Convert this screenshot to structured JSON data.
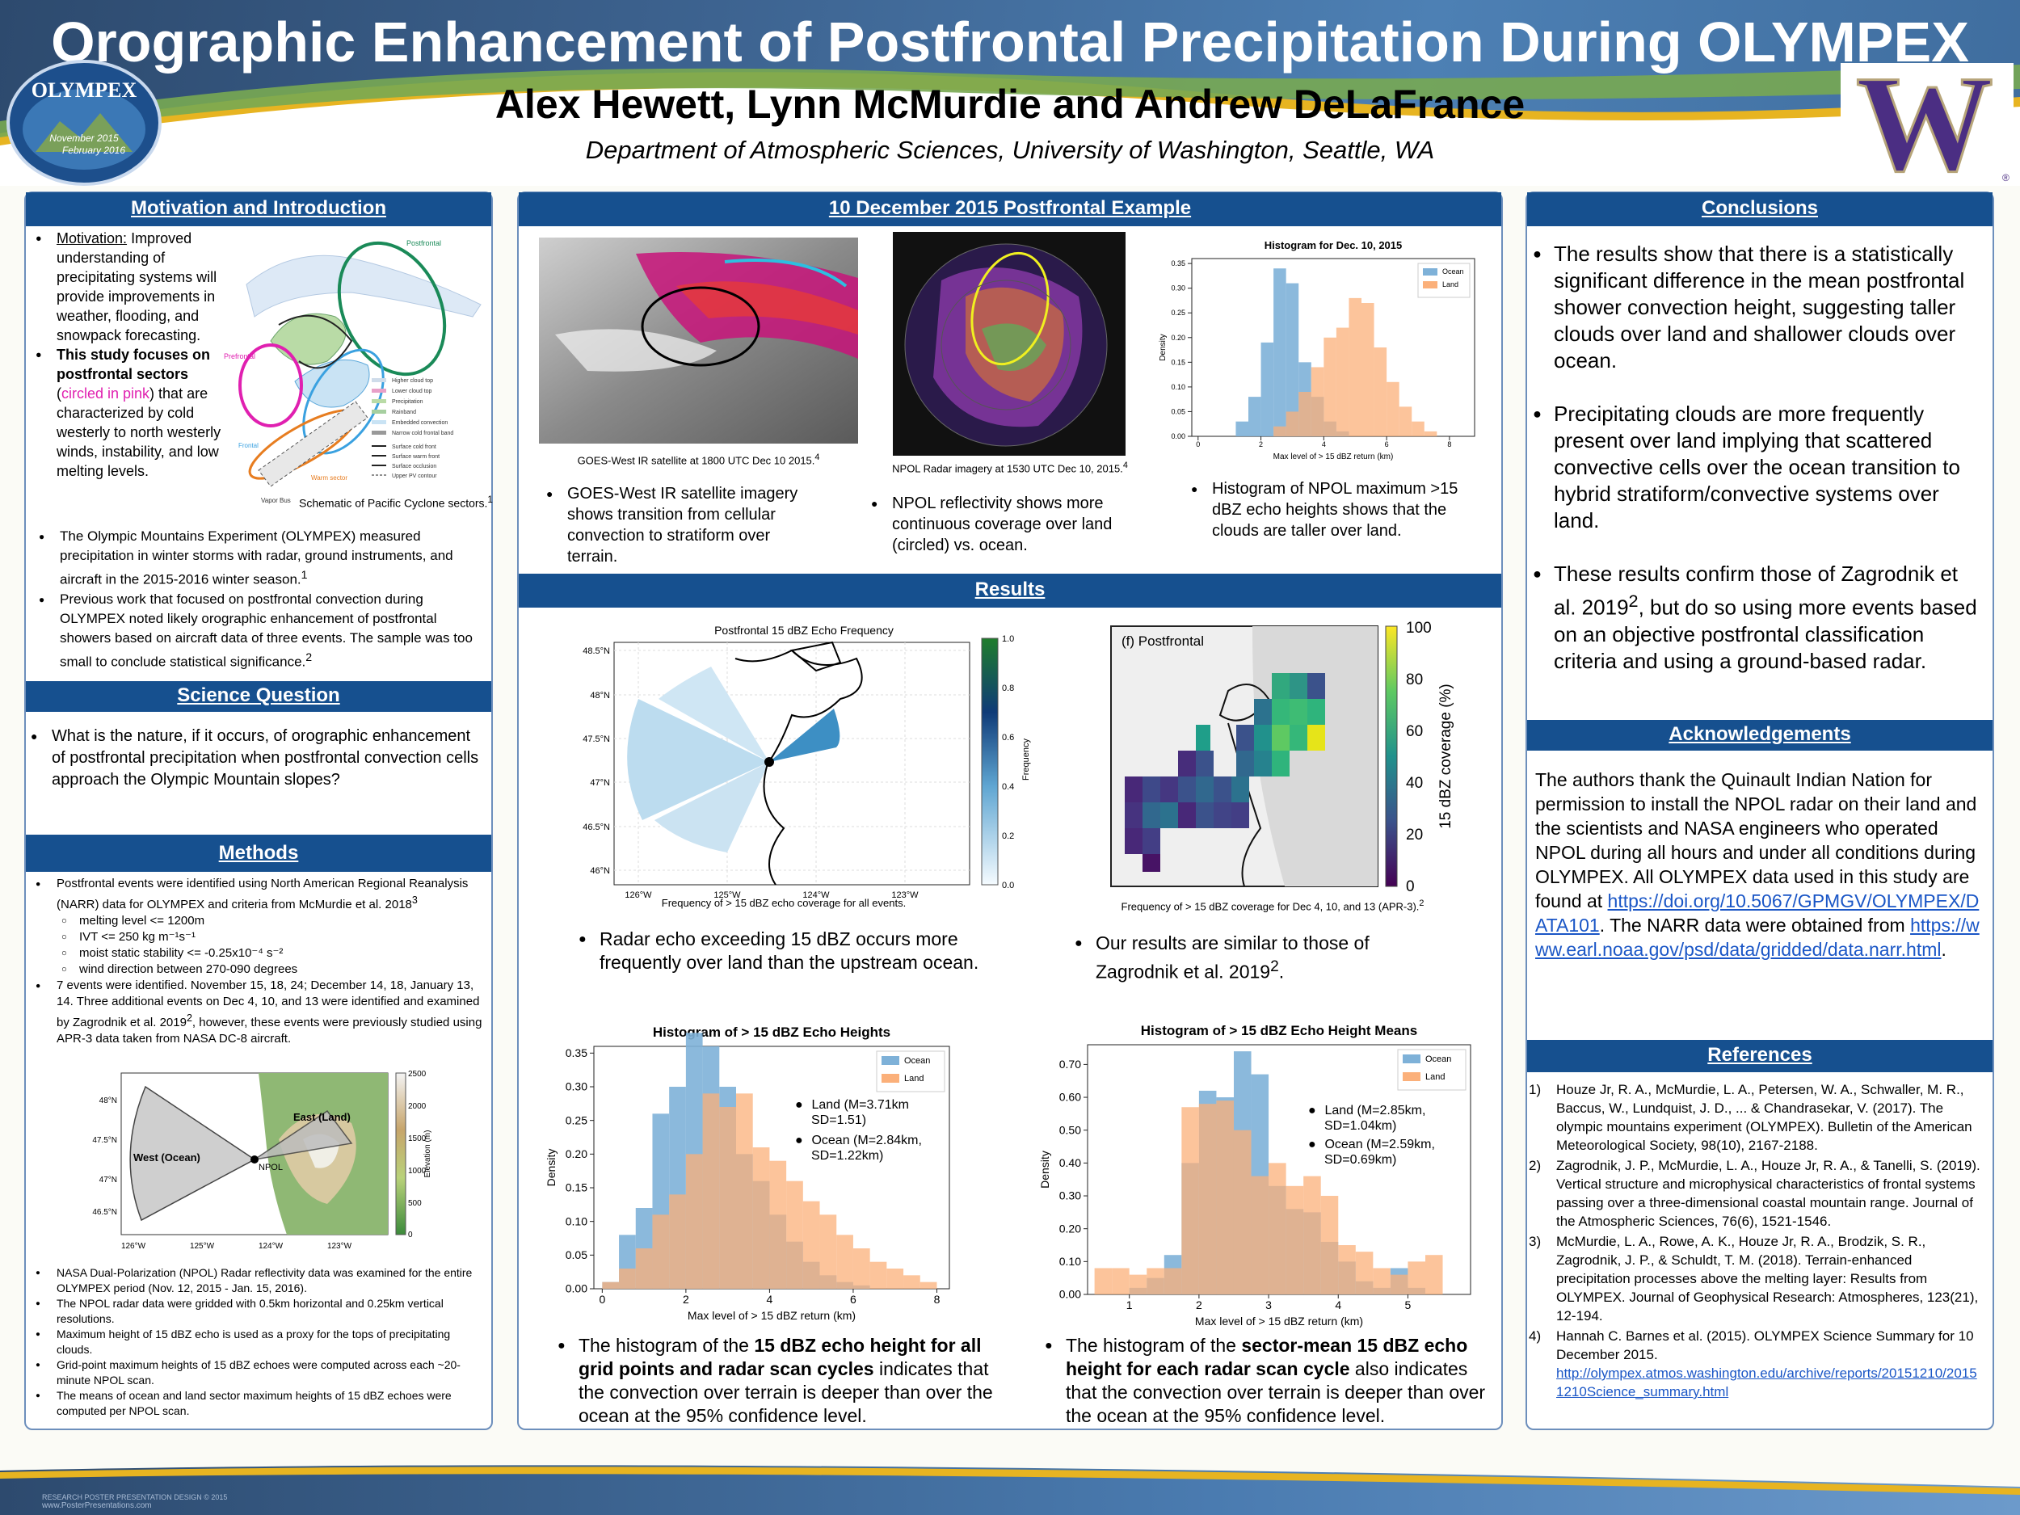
{
  "header": {
    "title": "Orographic Enhancement of Postfrontal Precipitation During OLYMPEX",
    "authors": "Alex Hewett, Lynn McMurdie and Andrew DeLaFrance",
    "affiliation": "Department of Atmospheric Sciences, University of Washington, Seattle, WA",
    "logo_top": "OLYMPEX",
    "logo_d1": "November 2015",
    "logo_d2": "February 2016",
    "uw_letter": "W",
    "uw_reg": "®"
  },
  "motivation": {
    "heading": "Motivation and Introduction",
    "b1_label": "Motivation:",
    "b1_text": "Improved understanding of precipitating systems will provide improvements in weather, flooding, and snowpack forecasting.",
    "b2_bold": "This study focuses on postfrontal sectors",
    "b2_pink": "circled in pink",
    "b2_rest": "that are characterized by cold westerly to north westerly winds, instability, and low melting levels.",
    "fig_caption": "Schematic of Pacific Cyclone sectors.",
    "fig_caption_sup": "1",
    "fig_labels": {
      "postfrontal": "Postfrontal",
      "prefrontal": "Prefrontal",
      "warm_sector": "Warm sector",
      "frontal": "Frontal",
      "vapor_bus": "Vapor Bus"
    },
    "legend": [
      "Higher cloud top",
      "Lower cloud top",
      "Precipitation",
      "Rainband",
      "Embedded convection",
      "Narrow cold frontal band",
      "Surface cold front",
      "Surface warm front",
      "Surface occlusion",
      "Upper PV contour"
    ],
    "b3": "The Olympic Mountains Experiment (OLYMPEX) measured precipitation in winter storms with radar, ground instruments, and aircraft in the 2015-2016 winter season.",
    "b3_sup": "1",
    "b4": "Previous work that focused on postfrontal convection during OLYMPEX noted likely orographic enhancement of postfrontal showers based on aircraft data of three events. The sample was too small to conclude statistical significance.",
    "b4_sup": "2"
  },
  "science": {
    "heading": "Science Question",
    "text": "What is the nature, if it occurs, of orographic enhancement of postfrontal precipitation when postfrontal convection cells approach the Olympic Mountain slopes?"
  },
  "methods": {
    "heading": "Methods",
    "b1": "Postfrontal events were identified using North American Regional Reanalysis (NARR) data for OLYMPEX and criteria from McMurdie et al. 2018",
    "b1_sup": "3",
    "criteria": [
      "melting level <= 1200m",
      "IVT <= 250 kg m⁻¹s⁻¹",
      "moist static stability <= -0.25x10⁻⁴ s⁻²",
      "wind direction between 270-090 degrees"
    ],
    "b2": "7 events were identified. November 15, 18, 24; December 14, 18, January 13, 14. Three additional events on Dec 4, 10, and 13 were identified and examined by Zagrodnik et al. 2019",
    "b2_sup": "2",
    "b2_rest": ", however, these events were previously studied using APR-3 data taken from NASA DC-8 aircraft.",
    "map": {
      "west": "West (Ocean)",
      "east": "East (Land)",
      "npol": "NPOL",
      "cbar_label": "Elevation (m)",
      "cbar_ticks": [
        "2500",
        "2000",
        "1500",
        "1000",
        "500",
        "0"
      ],
      "lat_ticks": [
        "48°N",
        "47.5°N",
        "47°N",
        "46.5°N"
      ],
      "lon_ticks": [
        "126°W",
        "125°W",
        "124°W",
        "123°W"
      ]
    },
    "b3": "NASA Dual-Polarization (NPOL) Radar reflectivity data was examined for the entire OLYMPEX period (Nov. 12, 2015 - Jan. 15, 2016).",
    "b4": "The NPOL radar data were gridded with 0.5km horizontal and 0.25km vertical resolutions.",
    "b5": "Maximum height of 15 dBZ echo is used as a proxy for the tops of precipitating clouds.",
    "b6": "Grid-point maximum heights of 15 dBZ echoes were computed across each ~20-minute NPOL scan.",
    "b7": "The means of ocean and land sector maximum heights of 15 dBZ echoes were computed per NPOL scan."
  },
  "example": {
    "heading": "10 December 2015 Postfrontal Example",
    "sat_caption": "GOES-West IR satellite at 1800 UTC Dec 10 2015.",
    "sat_sup": "4",
    "radar_caption": "NPOL Radar imagery at 1530 UTC Dec 10, 2015.",
    "radar_sup": "4",
    "b1": "GOES-West IR satellite imagery shows transition from cellular convection to stratiform over terrain.",
    "b2": "NPOL reflectivity shows more continuous coverage over land (circled) vs. ocean.",
    "b3": "Histogram of NPOL maximum >15 dBZ echo heights shows that the clouds are taller over land."
  },
  "results": {
    "heading": "Results",
    "freq_title": "Postfrontal 15 dBZ Echo Frequency",
    "freq_cbar_label": "Frequency",
    "freq_cbar_ticks": [
      "1.0",
      "0.8",
      "0.6",
      "0.4",
      "0.2",
      "0.0"
    ],
    "freq_lat": [
      "48.5°N",
      "48°N",
      "47.5°N",
      "47°N",
      "46.5°N",
      "46°N"
    ],
    "freq_lon": [
      "126°W",
      "125°W",
      "124°W",
      "123°W"
    ],
    "freq_caption": "Frequency of > 15 dBZ echo coverage for all events.",
    "cov_panel": "(f) Postfrontal",
    "cov_cbar_label": "15 dBZ coverage (%)",
    "cov_cbar_ticks": [
      "100",
      "80",
      "60",
      "40",
      "20",
      "0"
    ],
    "cov_caption": "Frequency of > 15 dBZ coverage for Dec 4, 10, and 13 (APR-3).",
    "cov_sup": "2",
    "b1": "Radar echo exceeding 15 dBZ occurs more frequently over land than the upstream ocean.",
    "b2": "Our results are similar to those of Zagrodnik et al. 2019",
    "b2_sup": "2",
    "b2_end": ".",
    "b3_pre": "The histogram of the ",
    "b3_bold": "15 dBZ echo height for all grid points and radar scan cycles",
    "b3_post": " indicates that the convection over terrain is deeper than over the ocean at the 95% confidence level.",
    "b4_pre": "The histogram of the ",
    "b4_bold": "sector-mean 15 dBZ echo height for each radar scan cycle",
    "b4_post": " also indicates that the convection over terrain is deeper than over the ocean at the 95% confidence level."
  },
  "conclusions": {
    "heading": "Conclusions",
    "b1": "The results show that there is a statistically significant difference in the mean postfrontal shower convection height, suggesting taller clouds over land and shallower clouds over ocean.",
    "b2": "Precipitating clouds are more frequently present over land implying that scattered convective cells over the ocean transition to hybrid stratiform/convective systems over land.",
    "b3_pre": "These results confirm those of Zagrodnik et al. 2019",
    "b3_sup": "2",
    "b3_post": ", but do so using more events based on an objective postfrontal classification criteria and using a ground-based radar."
  },
  "ack": {
    "heading": "Acknowledgements",
    "text": "The authors thank the Quinault Indian Nation for permission to install the NPOL radar on their land and the scientists and NASA engineers who operated NPOL during all hours and under all conditions during OLYMPEX. All OLYMPEX data used in this study are found at",
    "link1": "https://doi.org/10.5067/GPMGV/OLYMPEX/DATA101",
    "mid": ". The NARR data were obtained from",
    "link2": "https://www.earl.noaa.gov/psd/data/gridded/data.narr.html",
    "end": "."
  },
  "references": {
    "heading": "References",
    "items": [
      {
        "num": "1)",
        "text": "Houze Jr, R. A., McMurdie, L. A., Petersen, W. A., Schwaller, M. R., Baccus, W., Lundquist, J. D., ... & Chandrasekar, V. (2017). The olympic mountains experiment (OLYMPEX). Bulletin of the American Meteorological Society, 98(10), 2167-2188."
      },
      {
        "num": "2)",
        "text": "Zagrodnik, J. P., McMurdie, L. A., Houze Jr, R. A., & Tanelli, S. (2019). Vertical structure and microphysical characteristics of frontal systems passing over a three-dimensional coastal mountain range. Journal of the Atmospheric Sciences, 76(6), 1521-1546."
      },
      {
        "num": "3)",
        "text": "McMurdie, L. A., Rowe, A. K., Houze Jr, R. A., Brodzik, S. R., Zagrodnik, J. P., & Schuldt, T. M. (2018). Terrain‐enhanced precipitation processes above the melting layer: Results from OLYMPEX. Journal of Geophysical Research: Atmospheres, 123(21), 12-194."
      },
      {
        "num": "4)",
        "text": "Hannah C. Barnes et al. (2015). OLYMPEX Science Summary for 10 December 2015."
      }
    ],
    "link4": "http://olympex.atmos.washington.edu/archive/reports/20151210/20151210Science_summary.html"
  },
  "footer": {
    "credit1": "RESEARCH POSTER PRESENTATION DESIGN © 2015",
    "credit2": "www.PosterPresentations.com"
  },
  "chart_data": [
    {
      "type": "bar",
      "title": "Histogram for Dec. 10, 2015",
      "xlabel": "Max level of > 15 dBZ return (km)",
      "ylabel": "Density",
      "xlim": [
        -0.2,
        8.8
      ],
      "ylim": [
        0,
        0.36
      ],
      "xticks": [
        0,
        2,
        4,
        6,
        8
      ],
      "yticks": [
        0,
        0.05,
        0.1,
        0.15,
        0.2,
        0.25,
        0.3,
        0.35
      ],
      "bin_width": 0.4,
      "series": [
        {
          "name": "Ocean",
          "color": "#7eb1d8",
          "x": [
            1.4,
            1.8,
            2.2,
            2.6,
            3.0,
            3.4,
            3.8,
            4.2,
            4.6
          ],
          "values": [
            0.03,
            0.08,
            0.19,
            0.34,
            0.31,
            0.15,
            0.08,
            0.03,
            0.01
          ]
        },
        {
          "name": "Land",
          "color": "#fbb07a",
          "x": [
            2.6,
            3.0,
            3.4,
            3.8,
            4.2,
            4.6,
            5.0,
            5.4,
            5.8,
            6.2,
            6.6,
            7.0,
            7.4
          ],
          "values": [
            0.02,
            0.05,
            0.09,
            0.14,
            0.2,
            0.22,
            0.28,
            0.27,
            0.18,
            0.11,
            0.06,
            0.03,
            0.01
          ]
        }
      ]
    },
    {
      "type": "bar",
      "title": "Histogram of > 15 dBZ Echo Heights",
      "xlabel": "Max level of > 15 dBZ return (km)",
      "ylabel": "Density",
      "xlim": [
        -0.2,
        8.3
      ],
      "ylim": [
        0,
        0.36
      ],
      "xticks": [
        0,
        2,
        4,
        6,
        8
      ],
      "yticks": [
        0,
        0.05,
        0.1,
        0.15,
        0.2,
        0.25,
        0.3,
        0.35
      ],
      "bin_width": 0.4,
      "series": [
        {
          "name": "Ocean",
          "color": "#7eb1d8",
          "x": [
            0.2,
            0.6,
            1.0,
            1.4,
            1.8,
            2.2,
            2.6,
            3.0,
            3.4,
            3.8,
            4.2,
            4.6,
            5.0,
            5.4,
            5.8,
            6.2
          ],
          "values": [
            0.01,
            0.08,
            0.12,
            0.26,
            0.3,
            0.38,
            0.36,
            0.3,
            0.2,
            0.16,
            0.11,
            0.07,
            0.04,
            0.02,
            0.01,
            0.005
          ]
        },
        {
          "name": "Land",
          "color": "#fbb07a",
          "x": [
            0.2,
            0.6,
            1.0,
            1.4,
            1.8,
            2.2,
            2.6,
            3.0,
            3.4,
            3.8,
            4.2,
            4.6,
            5.0,
            5.4,
            5.8,
            6.2,
            6.6,
            7.0,
            7.4,
            7.8
          ],
          "values": [
            0.01,
            0.03,
            0.06,
            0.11,
            0.14,
            0.2,
            0.29,
            0.27,
            0.29,
            0.21,
            0.19,
            0.16,
            0.13,
            0.11,
            0.08,
            0.06,
            0.04,
            0.03,
            0.02,
            0.01
          ]
        }
      ],
      "annotations": [
        "Land (M=3.71km SD=1.51)",
        "Ocean (M=2.84km, SD=1.22km)"
      ]
    },
    {
      "type": "bar",
      "title": "Histogram of > 15 dBZ Echo Height Means",
      "xlabel": "Max level of > 15 dBZ return (km)",
      "ylabel": "Density",
      "xlim": [
        0.4,
        5.9
      ],
      "ylim": [
        0,
        0.76
      ],
      "xticks": [
        1,
        2,
        3,
        4,
        5
      ],
      "yticks": [
        0,
        0.1,
        0.2,
        0.3,
        0.4,
        0.5,
        0.6,
        0.7
      ],
      "bin_width": 0.25,
      "series": [
        {
          "name": "Ocean",
          "color": "#7eb1d8",
          "x": [
            1.125,
            1.375,
            1.625,
            1.875,
            2.125,
            2.375,
            2.625,
            2.875,
            3.125,
            3.375,
            3.625,
            3.875,
            4.125,
            4.375,
            4.625,
            4.875,
            5.125
          ],
          "values": [
            0.02,
            0.05,
            0.12,
            0.4,
            0.62,
            0.6,
            0.74,
            0.67,
            0.33,
            0.26,
            0.25,
            0.16,
            0.1,
            0.04,
            0.02,
            0.08,
            0.02
          ]
        },
        {
          "name": "Land",
          "color": "#fbb07a",
          "x": [
            0.625,
            0.875,
            1.125,
            1.375,
            1.625,
            1.875,
            2.125,
            2.375,
            2.625,
            2.875,
            3.125,
            3.375,
            3.625,
            3.875,
            4.125,
            4.375,
            4.625,
            4.875,
            5.125,
            5.375
          ],
          "values": [
            0.08,
            0.08,
            0.06,
            0.08,
            0.08,
            0.57,
            0.58,
            0.59,
            0.5,
            0.36,
            0.4,
            0.33,
            0.36,
            0.3,
            0.15,
            0.13,
            0.08,
            0.06,
            0.1,
            0.12
          ]
        }
      ],
      "annotations": [
        "Land (M=2.85km, SD=1.04km)",
        "Ocean (M=2.59km, SD=0.69km)"
      ]
    }
  ]
}
